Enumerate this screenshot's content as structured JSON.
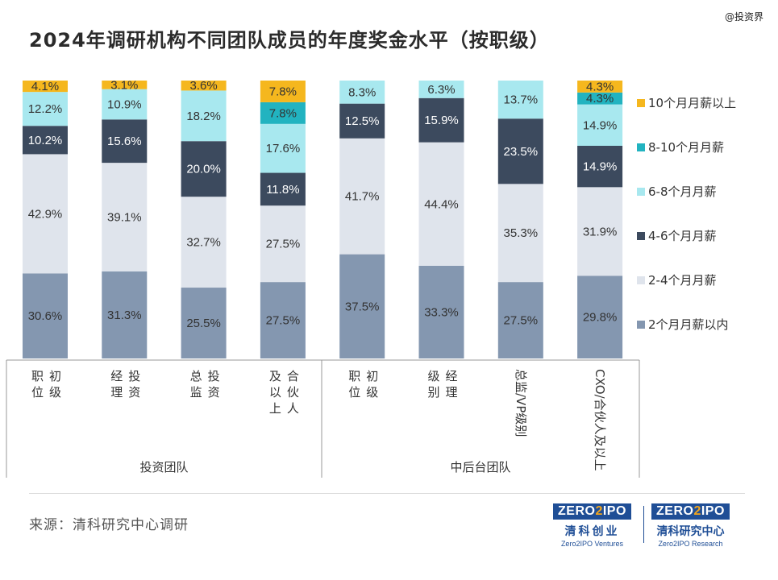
{
  "watermark": "@投资界",
  "source": "来源：清科研究中心调研",
  "logos": [
    {
      "box": [
        "ZERO",
        "2",
        "IPO"
      ],
      "cn": "清科创业",
      "en": "Zero2IPO Ventures"
    },
    {
      "box": [
        "ZERO",
        "2",
        "IPO"
      ],
      "cn": "清科研究中心",
      "en": "Zero2IPO Research"
    }
  ],
  "chart_data": {
    "type": "bar",
    "stacked": true,
    "title": "2024年调研机构不同团队成员的年度奖金水平（按职级）",
    "categories": [
      {
        "label": "职初位级",
        "group": "投资团队",
        "vertical": false
      },
      {
        "label": "经投理资",
        "group": "投资团队",
        "vertical": false
      },
      {
        "label": "总投监资",
        "group": "投资团队",
        "vertical": false
      },
      {
        "label": "及合以伙上人",
        "group": "投资团队",
        "vertical": false
      },
      {
        "label": "职初位级",
        "group": "中后台团队",
        "vertical": false
      },
      {
        "label": "级经别理",
        "group": "中后台团队",
        "vertical": false
      },
      {
        "label": "总监/VP级别",
        "group": "中后台团队",
        "vertical": true
      },
      {
        "label": "CXO/合伙人及以上",
        "group": "中后台团队",
        "vertical": true
      }
    ],
    "groups": [
      "投资团队",
      "中后台团队"
    ],
    "series": [
      {
        "name": "2个月月薪以内",
        "color": "#8497b0",
        "values": [
          30.6,
          31.3,
          25.5,
          27.5,
          37.5,
          33.3,
          27.5,
          29.8
        ],
        "labels": [
          "30.6%",
          "31.3%",
          "25.5%",
          "27.5%",
          "37.5%",
          "33.3%",
          "27.5%",
          "29.8%"
        ]
      },
      {
        "name": "2-4个月月薪",
        "color": "#dfe4ec",
        "values": [
          42.9,
          39.1,
          32.7,
          27.5,
          41.7,
          44.4,
          35.3,
          31.9
        ],
        "labels": [
          "42.9%",
          "39.1%",
          "32.7%",
          "27.5%",
          "41.7%",
          "44.4%",
          "35.3%",
          "31.9%"
        ]
      },
      {
        "name": "4-6个月月薪",
        "color": "#3c4a5e",
        "values": [
          10.2,
          15.6,
          20.0,
          11.8,
          12.5,
          15.9,
          23.5,
          14.9
        ],
        "labels": [
          "10.2%",
          "15.6%",
          "20.0%",
          "11.8%",
          "12.5%",
          "15.9%",
          "23.5%",
          "14.9%"
        ]
      },
      {
        "name": "6-8个月月薪",
        "color": "#a8e8ef",
        "values": [
          12.2,
          10.9,
          18.2,
          17.6,
          8.3,
          6.3,
          13.7,
          14.9
        ],
        "labels": [
          "12.2%",
          "10.9%",
          "18.2%",
          "17.6%",
          "8.3%",
          "6.3%",
          "13.7%",
          "14.9%"
        ]
      },
      {
        "name": "8-10个月月薪",
        "color": "#22b3c0",
        "values": [
          0,
          0,
          0,
          7.8,
          0,
          0,
          0,
          4.3
        ],
        "labels": [
          "",
          "",
          "",
          "7.8%",
          "",
          "",
          "",
          "4.3%"
        ]
      },
      {
        "name": "10个月月薪以上",
        "color": "#f5b71e",
        "values": [
          4.1,
          3.1,
          3.6,
          7.8,
          0,
          0,
          0,
          4.3
        ],
        "labels": [
          "4.1%",
          "3.1%",
          "3.6%",
          "7.8%",
          "",
          "",
          "",
          "4.3%"
        ]
      }
    ],
    "legend_order": [
      "10个月月薪以上",
      "8-10个月月薪",
      "6-8个月月薪",
      "4-6个月月薪",
      "2-4个月月薪",
      "2个月月薪以内"
    ],
    "legend": "right",
    "ylim": [
      0,
      100
    ],
    "grid": false
  }
}
